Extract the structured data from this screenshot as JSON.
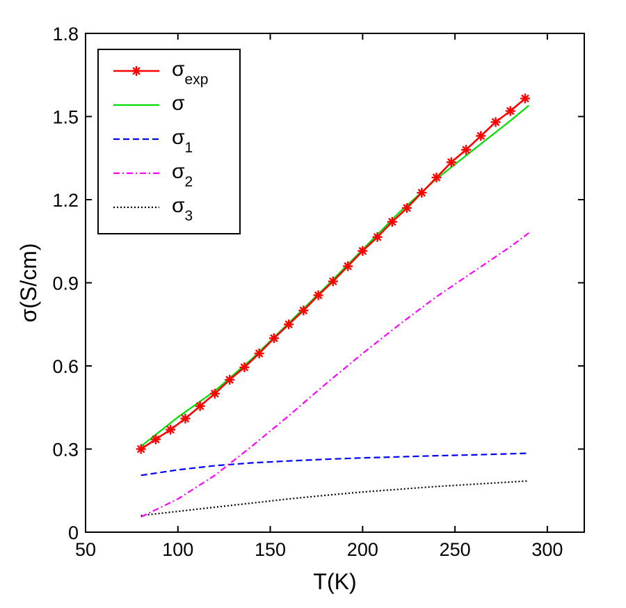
{
  "chart_data": {
    "type": "line",
    "xlabel": "T(K)",
    "ylabel": "σ(S/cm)",
    "xlim": [
      50,
      320
    ],
    "ylim": [
      0,
      1.8
    ],
    "xticks": [
      "50",
      "100",
      "150",
      "200",
      "250",
      "300"
    ],
    "yticks": [
      "0",
      "0.3",
      "0.6",
      "0.9",
      "1.2",
      "1.5",
      "1.8"
    ],
    "grid": false,
    "legend_position": "top-left",
    "series": [
      {
        "key": "exp",
        "name": "σ",
        "sub": "exp",
        "color": "#ff0000",
        "style": "solid-star",
        "x": [
          80,
          88,
          96,
          104,
          112,
          120,
          128,
          136,
          144,
          152,
          160,
          168,
          176,
          184,
          192,
          200,
          208,
          216,
          224,
          232,
          240,
          248,
          256,
          264,
          272,
          280,
          288
        ],
        "y": [
          0.3,
          0.335,
          0.37,
          0.41,
          0.455,
          0.5,
          0.55,
          0.595,
          0.645,
          0.7,
          0.75,
          0.8,
          0.855,
          0.905,
          0.96,
          1.015,
          1.065,
          1.12,
          1.17,
          1.225,
          1.28,
          1.335,
          1.38,
          1.43,
          1.48,
          1.52,
          1.565
        ]
      },
      {
        "key": "total",
        "name": "σ",
        "sub": "",
        "color": "#00dd00",
        "style": "solid",
        "x": [
          80,
          100,
          120,
          140,
          160,
          180,
          200,
          220,
          240,
          260,
          280,
          290
        ],
        "y": [
          0.31,
          0.415,
          0.51,
          0.625,
          0.755,
          0.885,
          1.02,
          1.155,
          1.275,
          1.38,
          1.485,
          1.54
        ]
      },
      {
        "key": "s1",
        "name": "σ",
        "sub": "1",
        "color": "#0000ff",
        "style": "dashed",
        "x": [
          80,
          100,
          120,
          140,
          160,
          180,
          200,
          220,
          240,
          260,
          280,
          290
        ],
        "y": [
          0.205,
          0.225,
          0.24,
          0.25,
          0.257,
          0.263,
          0.268,
          0.272,
          0.276,
          0.279,
          0.283,
          0.285
        ]
      },
      {
        "key": "s2",
        "name": "σ",
        "sub": "2",
        "color": "#ff00ff",
        "style": "dashdot",
        "x": [
          80,
          100,
          120,
          140,
          160,
          180,
          200,
          220,
          240,
          260,
          280,
          290
        ],
        "y": [
          0.055,
          0.12,
          0.205,
          0.31,
          0.42,
          0.535,
          0.645,
          0.75,
          0.85,
          0.94,
          1.03,
          1.08
        ]
      },
      {
        "key": "s3",
        "name": "σ",
        "sub": "3",
        "color": "#000000",
        "style": "dotted",
        "x": [
          80,
          100,
          120,
          140,
          160,
          180,
          200,
          220,
          240,
          260,
          280,
          290
        ],
        "y": [
          0.06,
          0.075,
          0.09,
          0.105,
          0.12,
          0.133,
          0.145,
          0.155,
          0.165,
          0.173,
          0.181,
          0.185
        ]
      }
    ]
  }
}
